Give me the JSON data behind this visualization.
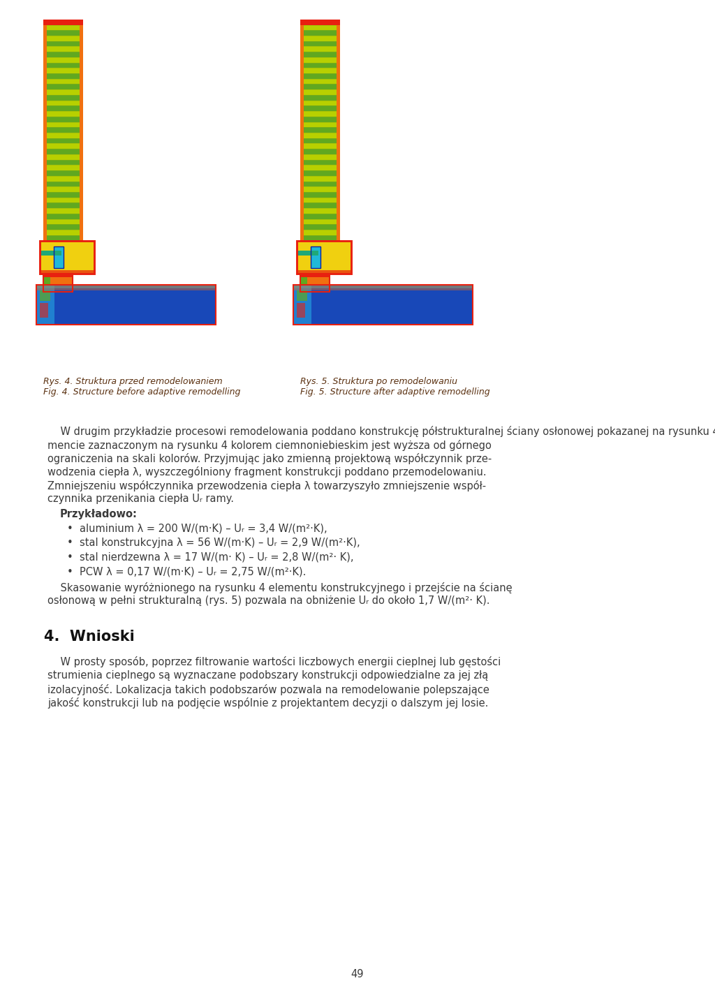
{
  "background_color": "#ffffff",
  "text_color": "#3d3d3d",
  "fig_caption_color": "#5a3010",
  "page_number": "49",
  "fig4_caption_line1": "Rys. 4. Struktura przed remodelowaniem",
  "fig4_caption_line2": "Fig. 4. Structure before adaptive remodelling",
  "fig5_caption_line1": "Rys. 5. Struktura po remodelowaniu",
  "fig5_caption_line2": "Fig. 5. Structure after adaptive remodelling",
  "section_title": "4.  Wnioski",
  "body_color": "#3a3a3a"
}
